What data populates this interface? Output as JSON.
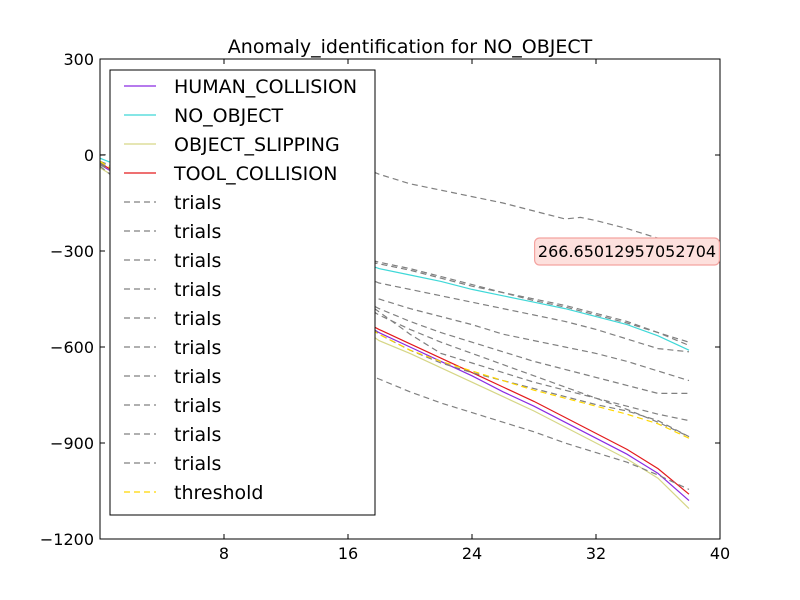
{
  "chart_data": {
    "type": "line",
    "title": "Anomaly_identification for NO_OBJECT",
    "xlabel": "",
    "ylabel": "",
    "xlim": [
      0,
      40
    ],
    "ylim": [
      -1200,
      300
    ],
    "xticks": [
      8,
      16,
      24,
      32,
      40
    ],
    "xtick_labels": [
      "8",
      "16",
      "24",
      "32",
      "40"
    ],
    "yticks": [
      300,
      0,
      -300,
      -600,
      -900,
      -1200
    ],
    "ytick_labels": [
      "300",
      "0",
      "−300",
      "−600",
      "−900",
      "−1200"
    ],
    "grid": false,
    "legend": "upper-left",
    "annotation": {
      "text": "266.65012957052704",
      "x": 34,
      "y": -300,
      "facecolor": "#fde0dd",
      "edgecolor": "#f4a3a0"
    },
    "series": [
      {
        "name": "HUMAN_COLLISION",
        "color": "#8a2be2",
        "style": "solid",
        "x": [
          0,
          17,
          18,
          20,
          22,
          24,
          26,
          28,
          30,
          32,
          34,
          36,
          38
        ],
        "y": [
          -30,
          -525,
          -555,
          -600,
          -645,
          -690,
          -740,
          -785,
          -835,
          -885,
          -935,
          -995,
          -1080
        ]
      },
      {
        "name": "NO_OBJECT",
        "color": "#3fd8d8",
        "style": "solid",
        "x": [
          0,
          16,
          18,
          20,
          22,
          24,
          26,
          28,
          30,
          32,
          34,
          36,
          38
        ],
        "y": [
          -10,
          -320,
          -355,
          -375,
          -395,
          -420,
          -440,
          -460,
          -480,
          -505,
          -530,
          -565,
          -610
        ]
      },
      {
        "name": "OBJECT_SLIPPING",
        "color": "#d6d686",
        "style": "solid",
        "x": [
          0,
          17,
          18,
          20,
          22,
          24,
          26,
          28,
          30,
          32,
          34,
          36,
          38
        ],
        "y": [
          -40,
          -545,
          -580,
          -620,
          -665,
          -710,
          -755,
          -800,
          -850,
          -900,
          -950,
          -1010,
          -1105
        ]
      },
      {
        "name": "TOOL_COLLISION",
        "color": "#e31a1c",
        "style": "solid",
        "x": [
          0,
          17,
          18,
          20,
          22,
          24,
          26,
          28,
          30,
          32,
          34,
          36,
          38
        ],
        "y": [
          -25,
          -520,
          -545,
          -590,
          -635,
          -680,
          -725,
          -770,
          -820,
          -870,
          -920,
          -980,
          -1060
        ]
      },
      {
        "name": "trials",
        "color": "#808080",
        "style": "dashed",
        "x": [
          0,
          14,
          16,
          18,
          20,
          22,
          24,
          26,
          28,
          30,
          31,
          32,
          34,
          36,
          38
        ],
        "y": [
          0,
          30,
          -20,
          -60,
          -90,
          -110,
          -130,
          -150,
          -175,
          -200,
          -195,
          -205,
          -230,
          -260,
          -310
        ]
      },
      {
        "name": "trials",
        "color": "#808080",
        "style": "dashed",
        "x": [
          0,
          16,
          18,
          20,
          22,
          24,
          26,
          28,
          30,
          32,
          34,
          36,
          38
        ],
        "y": [
          -20,
          -320,
          -340,
          -360,
          -385,
          -410,
          -430,
          -455,
          -475,
          -500,
          -525,
          -555,
          -585
        ]
      },
      {
        "name": "trials",
        "color": "#808080",
        "style": "dashed",
        "x": [
          0,
          16,
          18,
          20,
          22,
          24,
          26,
          28,
          30,
          32,
          34,
          36,
          38
        ],
        "y": [
          -20,
          -310,
          -335,
          -355,
          -380,
          -405,
          -430,
          -450,
          -470,
          -495,
          -520,
          -555,
          -595
        ]
      },
      {
        "name": "trials",
        "color": "#808080",
        "style": "dashed",
        "x": [
          0,
          16,
          18,
          20,
          22,
          24,
          26,
          28,
          30,
          32,
          34,
          36,
          38
        ],
        "y": [
          -25,
          -360,
          -400,
          -420,
          -440,
          -460,
          -480,
          -500,
          -520,
          -545,
          -575,
          -605,
          -615
        ]
      },
      {
        "name": "trials",
        "color": "#808080",
        "style": "dashed",
        "x": [
          0,
          16,
          18,
          20,
          22,
          24,
          26,
          28,
          30,
          32,
          34,
          36,
          38
        ],
        "y": [
          -25,
          -410,
          -450,
          -480,
          -505,
          -530,
          -560,
          -580,
          -600,
          -620,
          -645,
          -675,
          -705
        ]
      },
      {
        "name": "trials",
        "color": "#808080",
        "style": "dashed",
        "x": [
          0,
          16,
          18,
          20,
          22,
          24,
          26,
          28,
          30,
          32,
          34,
          36,
          38
        ],
        "y": [
          -25,
          -430,
          -480,
          -520,
          -555,
          -585,
          -615,
          -645,
          -670,
          -695,
          -720,
          -745,
          -745
        ]
      },
      {
        "name": "trials",
        "color": "#808080",
        "style": "dashed",
        "x": [
          0,
          16,
          18,
          20,
          22,
          24,
          26,
          28,
          30,
          32,
          34,
          36,
          38
        ],
        "y": [
          -30,
          -420,
          -490,
          -560,
          -620,
          -650,
          -680,
          -710,
          -735,
          -760,
          -785,
          -810,
          -830
        ]
      },
      {
        "name": "trials",
        "color": "#808080",
        "style": "dashed",
        "x": [
          0,
          16,
          18,
          20,
          22,
          24,
          26,
          28,
          30,
          32,
          34,
          36,
          38
        ],
        "y": [
          -30,
          -470,
          -560,
          -610,
          -650,
          -680,
          -705,
          -730,
          -755,
          -780,
          -800,
          -830,
          -880
        ]
      },
      {
        "name": "trials",
        "color": "#808080",
        "style": "dashed",
        "x": [
          0,
          16,
          18,
          20,
          22,
          24,
          26,
          28,
          30,
          32,
          34,
          36,
          38
        ],
        "y": [
          -35,
          -660,
          -700,
          -740,
          -775,
          -805,
          -835,
          -865,
          -900,
          -930,
          -960,
          -1000,
          -1045
        ]
      },
      {
        "name": "trials",
        "color": "#808080",
        "style": "dashed",
        "x": [
          0,
          16,
          18,
          20,
          22,
          24,
          26,
          28,
          30,
          32,
          34,
          36,
          38
        ],
        "y": [
          -30,
          -440,
          -500,
          -545,
          -585,
          -620,
          -655,
          -690,
          -725,
          -760,
          -795,
          -835,
          -880
        ]
      },
      {
        "name": "threshold",
        "color": "#ffd700",
        "style": "dashed",
        "x": [
          0,
          16,
          18,
          20,
          22,
          24,
          26,
          28,
          30,
          32,
          34,
          36,
          38
        ],
        "y": [
          -20,
          -500,
          -560,
          -610,
          -645,
          -675,
          -705,
          -735,
          -760,
          -785,
          -810,
          -840,
          -885
        ]
      }
    ]
  }
}
